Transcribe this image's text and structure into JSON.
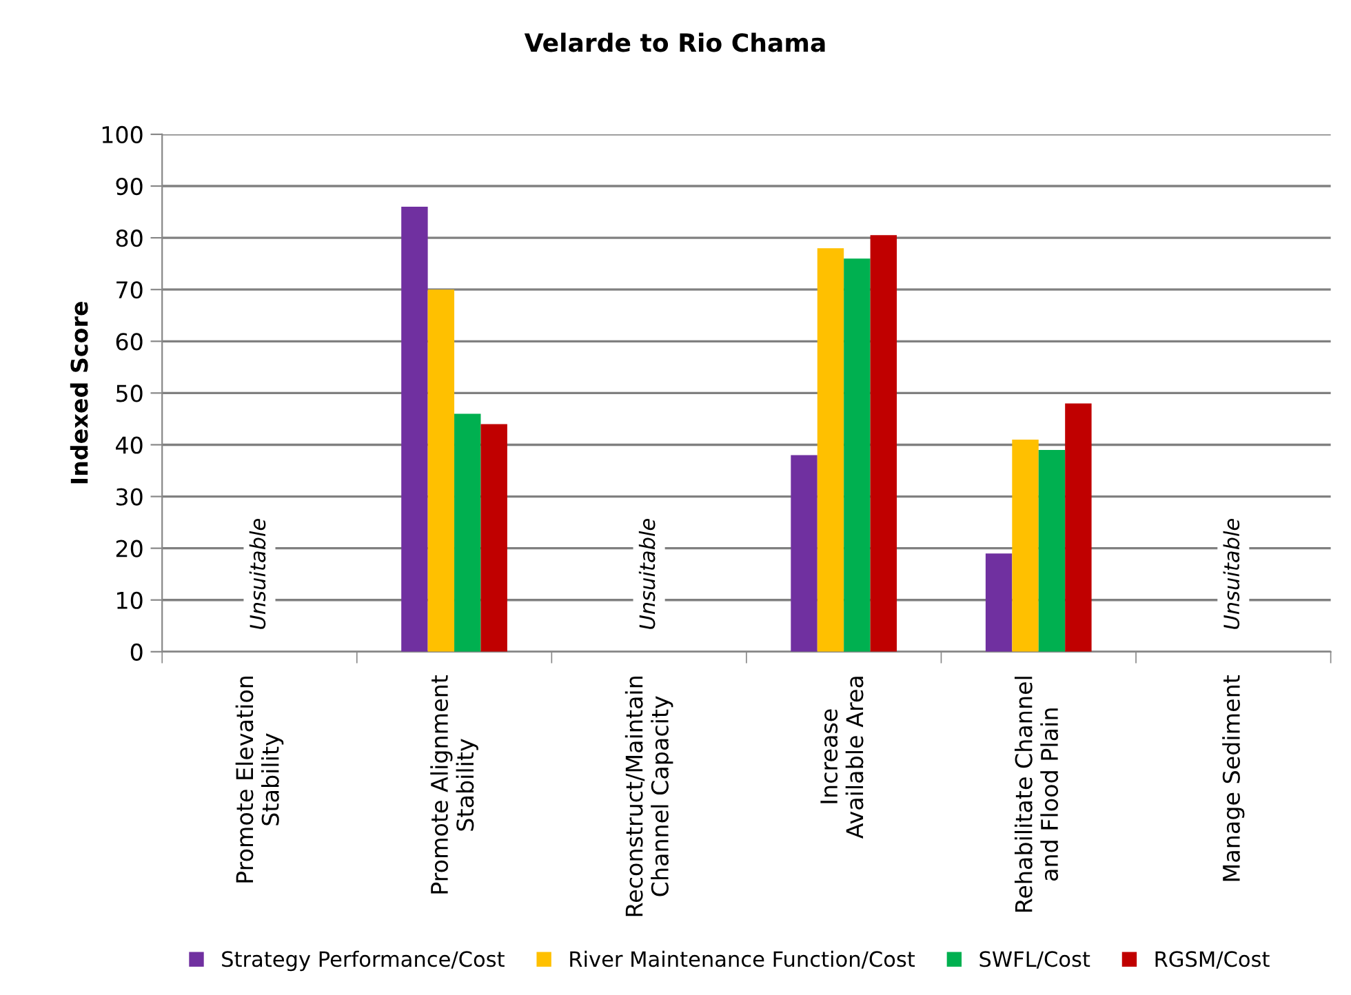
{
  "chart_data": {
    "type": "bar",
    "title": "Velarde to Rio Chama",
    "ylabel": "Indexed Score",
    "categories": [
      "Promote Elevation\nStability",
      "Promote Alignment\nStability",
      "Reconstruct/Maintain\nChannel Capacity",
      "Increase\nAvailable Area",
      "Rehabilitate Channel\nand Flood Plain",
      "Manage Sediment"
    ],
    "series": [
      {
        "name": "Strategy Performance/Cost",
        "color": "#7030a0",
        "values": [
          null,
          86,
          null,
          38,
          19,
          null
        ]
      },
      {
        "name": "River Maintenance Function/Cost",
        "color": "#ffc000",
        "values": [
          null,
          70,
          null,
          78,
          41,
          null
        ]
      },
      {
        "name": "SWFL/Cost",
        "color": "#00b050",
        "values": [
          null,
          46,
          null,
          76,
          39,
          null
        ]
      },
      {
        "name": "RGSM/Cost",
        "color": "#c00000",
        "values": [
          null,
          44,
          null,
          80.5,
          48,
          null
        ]
      }
    ],
    "annotations": [
      "Unsuitable",
      "Unsuitable",
      "Unsuitable"
    ],
    "ylim": [
      0,
      100
    ],
    "yticks": [
      0,
      10,
      20,
      30,
      40,
      50,
      60,
      70,
      80,
      90,
      100
    ],
    "grid": "y",
    "legend": "bottom"
  }
}
